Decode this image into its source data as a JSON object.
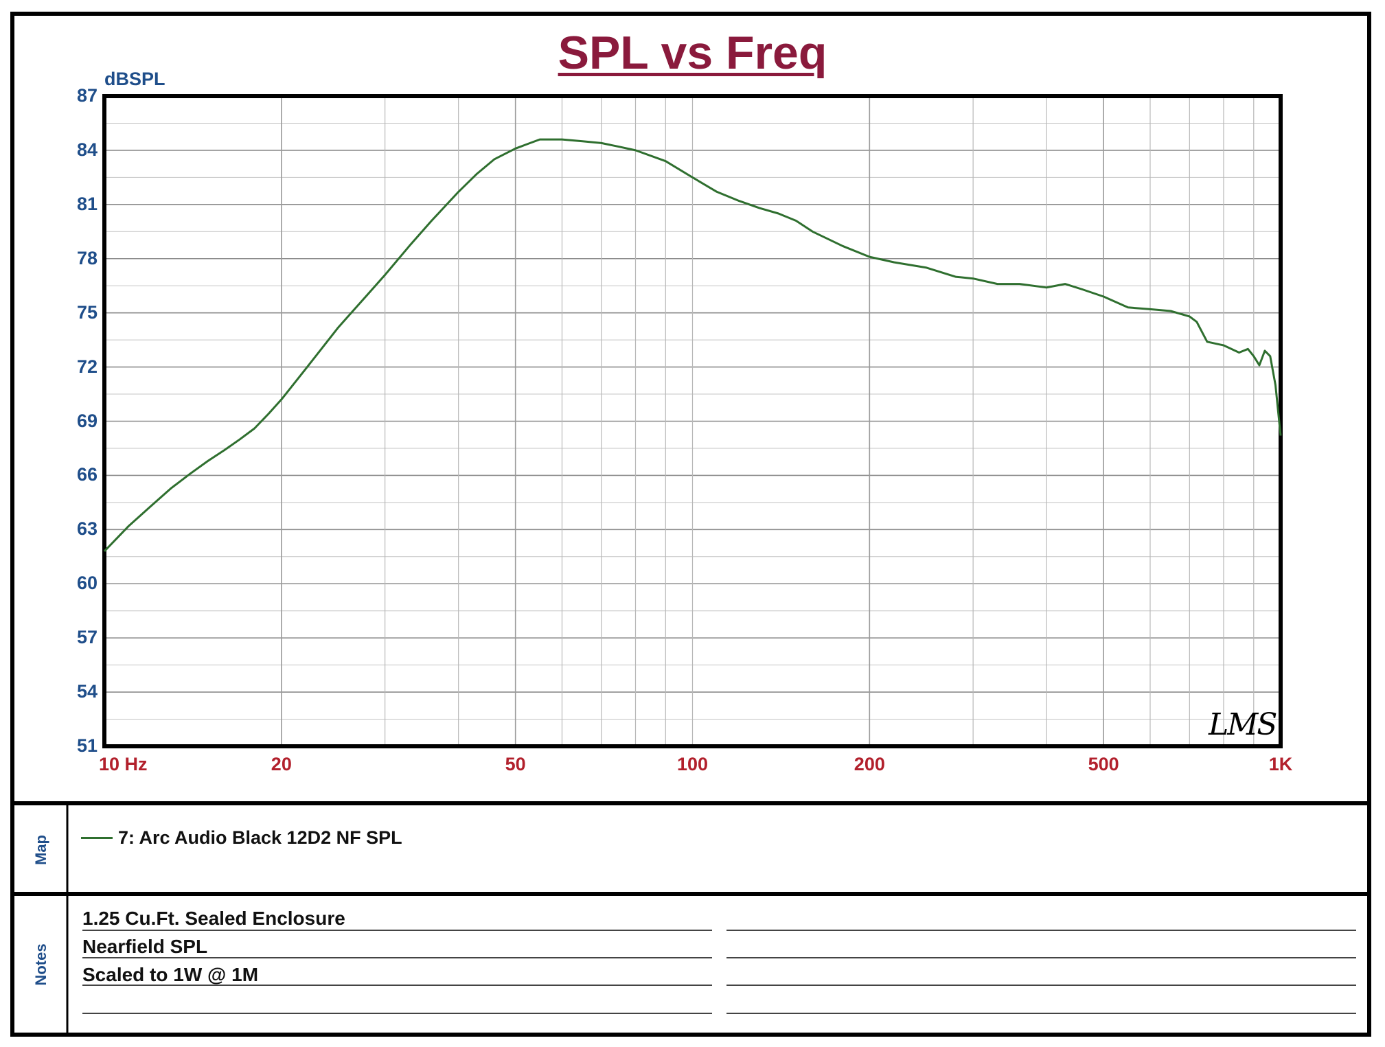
{
  "chart_data": {
    "type": "line",
    "title": "SPL vs Freq",
    "ylabel": "dBSPL",
    "xscale": "log",
    "xlim": [
      10,
      1000
    ],
    "ylim": [
      51,
      87
    ],
    "y_ticks": [
      87,
      84,
      81,
      78,
      75,
      72,
      69,
      66,
      63,
      60,
      57,
      54,
      51
    ],
    "x_tick_labels": [
      {
        "value": 10,
        "label": "10 Hz"
      },
      {
        "value": 20,
        "label": "20"
      },
      {
        "value": 50,
        "label": "50"
      },
      {
        "value": 100,
        "label": "100"
      },
      {
        "value": 200,
        "label": "200"
      },
      {
        "value": 500,
        "label": "500"
      },
      {
        "value": 1000,
        "label": "1K"
      }
    ],
    "grid": true,
    "series": [
      {
        "name": "7: Arc Audio Black 12D2 NF SPL",
        "color": "#2f6f2f",
        "x": [
          10,
          11,
          12,
          13,
          14,
          15,
          16,
          17,
          18,
          19,
          20,
          22,
          25,
          28,
          30,
          33,
          36,
          40,
          43,
          46,
          50,
          55,
          60,
          65,
          70,
          75,
          80,
          90,
          100,
          110,
          120,
          130,
          140,
          150,
          160,
          180,
          200,
          220,
          250,
          280,
          300,
          330,
          360,
          400,
          430,
          460,
          500,
          550,
          600,
          650,
          700,
          720,
          750,
          800,
          850,
          880,
          900,
          920,
          940,
          960,
          980,
          1000
        ],
        "y": [
          61.8,
          63.2,
          64.3,
          65.3,
          66.1,
          66.8,
          67.4,
          68.0,
          68.6,
          69.4,
          70.2,
          71.9,
          74.2,
          76.0,
          77.1,
          78.7,
          80.1,
          81.7,
          82.7,
          83.5,
          84.1,
          84.6,
          84.6,
          84.5,
          84.4,
          84.2,
          84.0,
          83.4,
          82.5,
          81.7,
          81.2,
          80.8,
          80.5,
          80.1,
          79.5,
          78.7,
          78.1,
          77.8,
          77.5,
          77.0,
          76.9,
          76.6,
          76.6,
          76.4,
          76.6,
          76.3,
          75.9,
          75.3,
          75.2,
          75.1,
          74.8,
          74.5,
          73.4,
          73.2,
          72.8,
          73.0,
          72.6,
          72.1,
          72.9,
          72.6,
          71.0,
          68.2
        ]
      }
    ]
  },
  "watermark_text": "LMS",
  "map": {
    "label": "Map",
    "legend_entry": "7: Arc Audio Black 12D2 NF SPL"
  },
  "notes": {
    "label": "Notes",
    "lines": [
      "1.25 Cu.Ft. Sealed Enclosure",
      "Nearfield SPL",
      "Scaled to 1W @ 1M",
      ""
    ]
  }
}
